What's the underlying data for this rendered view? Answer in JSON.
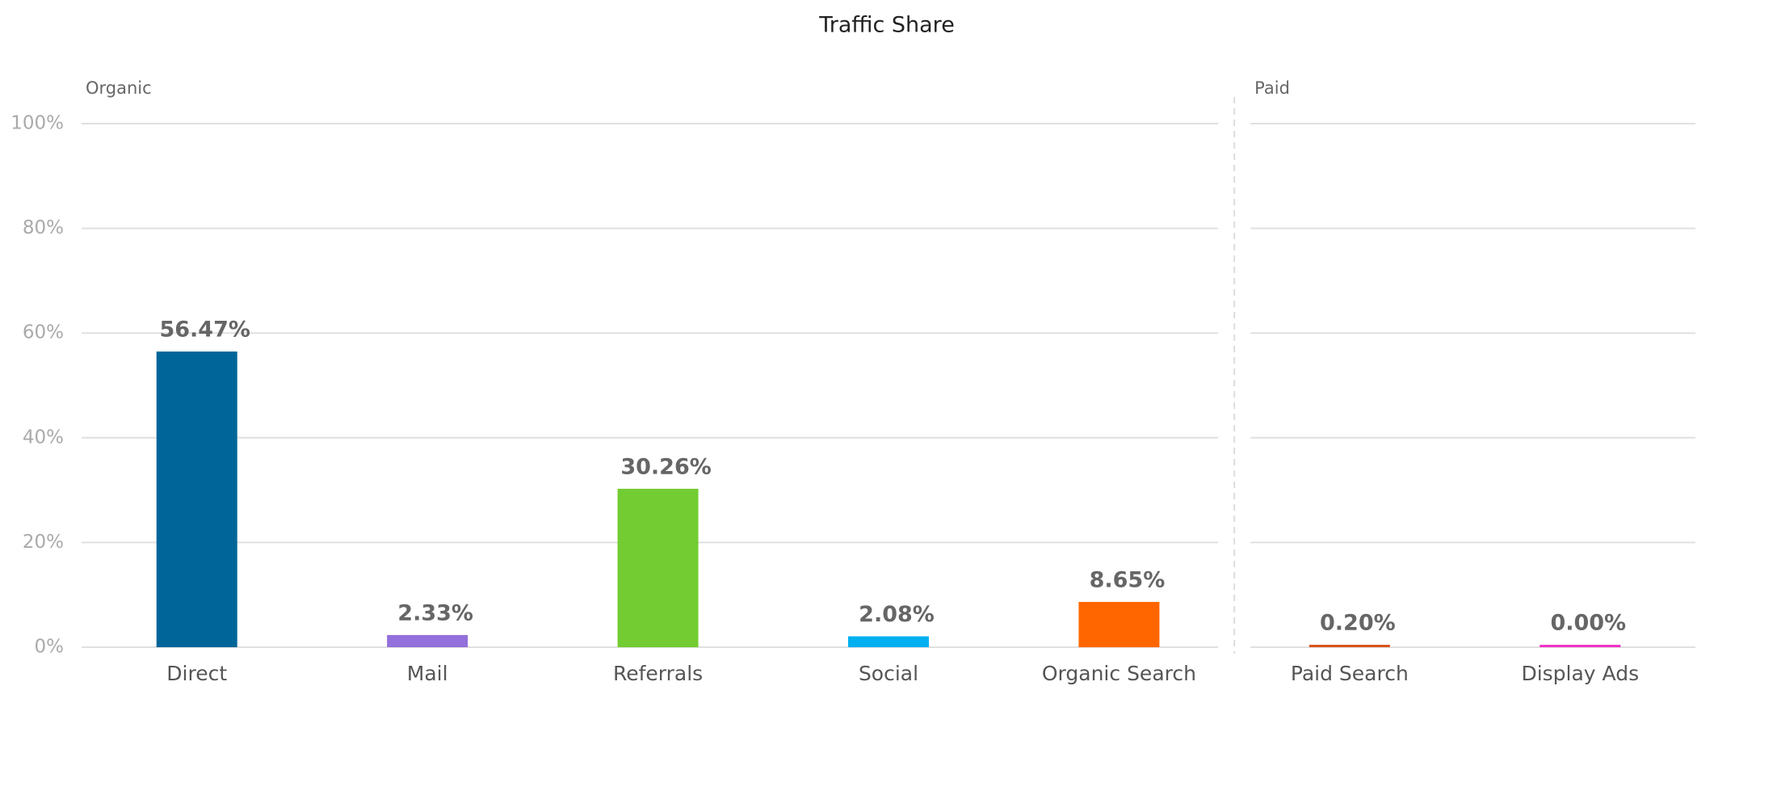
{
  "chart_data": {
    "type": "bar",
    "title": "Traffic Share",
    "categories": [
      "Direct",
      "Mail",
      "Referrals",
      "Social",
      "Organic Search",
      "Paid Search",
      "Display Ads"
    ],
    "groups": [
      "Organic",
      "Organic",
      "Organic",
      "Organic",
      "Organic",
      "Paid",
      "Paid"
    ],
    "values": [
      56.47,
      2.33,
      30.26,
      2.08,
      8.65,
      0.2,
      0.0
    ],
    "value_labels": [
      "56.47%",
      "2.33%",
      "30.26%",
      "2.08%",
      "8.65%",
      "0.20%",
      "0.00%"
    ],
    "colors": [
      "#006699",
      "#9370db",
      "#72cc32",
      "#00b0f0",
      "#ff6600",
      "#d9541e",
      "#f032c8"
    ],
    "ylim": [
      0,
      100
    ],
    "yticks": [
      {
        "value": 0,
        "label": "0%"
      },
      {
        "value": 20,
        "label": "20%"
      },
      {
        "value": 40,
        "label": "40%"
      },
      {
        "value": 60,
        "label": "60%"
      },
      {
        "value": 80,
        "label": "80%"
      },
      {
        "value": 100,
        "label": "100%"
      }
    ],
    "grid": true
  }
}
